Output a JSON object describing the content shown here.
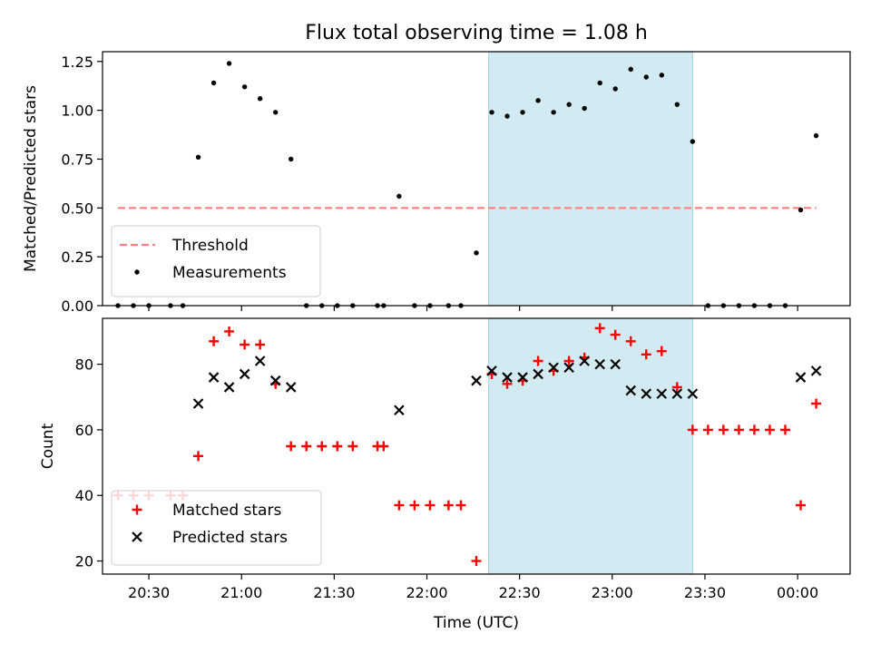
{
  "figure": {
    "title": "Flux total observing time = 1.08 h",
    "xlabel": "Time (UTC)"
  },
  "colors": {
    "highlight": "#add8e6",
    "threshold": "#ff7f7f",
    "measurement": "#000000",
    "matched": "#ff0000",
    "predicted": "#000000"
  },
  "chart_data": [
    {
      "type": "scatter",
      "ylabel": "Matched/Predicted stars",
      "xlim": [
        "20:15",
        "00:17"
      ],
      "ylim": [
        0,
        1.3
      ],
      "yticks": [
        0.0,
        0.25,
        0.5,
        0.75,
        1.0,
        1.25
      ],
      "ytick_labels": [
        "0.00",
        "0.25",
        "0.50",
        "0.75",
        "1.00",
        "1.25"
      ],
      "highlight_span": [
        "22:20",
        "23:26"
      ],
      "threshold": {
        "name": "Threshold",
        "y": 0.5,
        "x": [
          "20:20",
          "00:06"
        ]
      },
      "legend": "lower-left",
      "series": [
        {
          "name": "Measurements",
          "points": [
            [
              "20:20",
              0.0
            ],
            [
              "20:25",
              0.0
            ],
            [
              "20:30",
              0.0
            ],
            [
              "20:37",
              0.0
            ],
            [
              "20:41",
              0.0
            ],
            [
              "20:46",
              0.76
            ],
            [
              "20:51",
              1.14
            ],
            [
              "20:56",
              1.24
            ],
            [
              "21:01",
              1.12
            ],
            [
              "21:06",
              1.06
            ],
            [
              "21:11",
              0.99
            ],
            [
              "21:16",
              0.75
            ],
            [
              "21:21",
              0.0
            ],
            [
              "21:26",
              0.0
            ],
            [
              "21:31",
              0.0
            ],
            [
              "21:36",
              0.0
            ],
            [
              "21:44",
              0.0
            ],
            [
              "21:46",
              0.0
            ],
            [
              "21:51",
              0.56
            ],
            [
              "21:56",
              0.0
            ],
            [
              "22:01",
              0.0
            ],
            [
              "22:07",
              0.0
            ],
            [
              "22:11",
              0.0
            ],
            [
              "22:16",
              0.27
            ],
            [
              "22:21",
              0.99
            ],
            [
              "22:26",
              0.97
            ],
            [
              "22:31",
              0.99
            ],
            [
              "22:36",
              1.05
            ],
            [
              "22:41",
              0.99
            ],
            [
              "22:46",
              1.03
            ],
            [
              "22:51",
              1.01
            ],
            [
              "22:56",
              1.14
            ],
            [
              "23:01",
              1.11
            ],
            [
              "23:06",
              1.21
            ],
            [
              "23:11",
              1.17
            ],
            [
              "23:16",
              1.18
            ],
            [
              "23:21",
              1.03
            ],
            [
              "23:26",
              0.84
            ],
            [
              "23:31",
              0.0
            ],
            [
              "23:36",
              0.0
            ],
            [
              "23:41",
              0.0
            ],
            [
              "23:46",
              0.0
            ],
            [
              "23:51",
              0.0
            ],
            [
              "23:56",
              0.0
            ],
            [
              "00:01",
              0.49
            ],
            [
              "00:06",
              0.87
            ]
          ]
        }
      ]
    },
    {
      "type": "scatter",
      "ylabel": "Count",
      "xlim": [
        "20:15",
        "00:17"
      ],
      "ylim": [
        16,
        94
      ],
      "yticks": [
        20,
        40,
        60,
        80
      ],
      "ytick_labels": [
        "20",
        "40",
        "60",
        "80"
      ],
      "xticks": [
        "20:30",
        "21:00",
        "21:30",
        "22:00",
        "22:30",
        "23:00",
        "23:30",
        "00:00"
      ],
      "highlight_span": [
        "22:20",
        "23:26"
      ],
      "legend": "lower-left",
      "series": [
        {
          "name": "Matched stars",
          "marker": "plus",
          "points": [
            [
              "20:20",
              40
            ],
            [
              "20:25",
              40
            ],
            [
              "20:30",
              40
            ],
            [
              "20:37",
              40
            ],
            [
              "20:41",
              40
            ],
            [
              "20:46",
              52
            ],
            [
              "20:51",
              87
            ],
            [
              "20:56",
              90
            ],
            [
              "21:01",
              86
            ],
            [
              "21:06",
              86
            ],
            [
              "21:11",
              74
            ],
            [
              "21:16",
              55
            ],
            [
              "21:21",
              55
            ],
            [
              "21:26",
              55
            ],
            [
              "21:31",
              55
            ],
            [
              "21:36",
              55
            ],
            [
              "21:44",
              55
            ],
            [
              "21:46",
              55
            ],
            [
              "21:51",
              37
            ],
            [
              "21:56",
              37
            ],
            [
              "22:01",
              37
            ],
            [
              "22:07",
              37
            ],
            [
              "22:11",
              37
            ],
            [
              "22:16",
              20
            ],
            [
              "22:21",
              77
            ],
            [
              "22:26",
              74
            ],
            [
              "22:31",
              75
            ],
            [
              "22:36",
              81
            ],
            [
              "22:41",
              78
            ],
            [
              "22:46",
              81
            ],
            [
              "22:51",
              82
            ],
            [
              "22:56",
              91
            ],
            [
              "23:01",
              89
            ],
            [
              "23:06",
              87
            ],
            [
              "23:11",
              83
            ],
            [
              "23:16",
              84
            ],
            [
              "23:21",
              73
            ],
            [
              "23:26",
              60
            ],
            [
              "23:31",
              60
            ],
            [
              "23:36",
              60
            ],
            [
              "23:41",
              60
            ],
            [
              "23:46",
              60
            ],
            [
              "23:51",
              60
            ],
            [
              "23:56",
              60
            ],
            [
              "00:01",
              37
            ],
            [
              "00:06",
              68
            ]
          ]
        },
        {
          "name": "Predicted stars",
          "marker": "x",
          "points": [
            [
              "20:46",
              68
            ],
            [
              "20:51",
              76
            ],
            [
              "20:56",
              73
            ],
            [
              "21:01",
              77
            ],
            [
              "21:06",
              81
            ],
            [
              "21:11",
              75
            ],
            [
              "21:16",
              73
            ],
            [
              "21:51",
              66
            ],
            [
              "22:16",
              75
            ],
            [
              "22:21",
              78
            ],
            [
              "22:26",
              76
            ],
            [
              "22:31",
              76
            ],
            [
              "22:36",
              77
            ],
            [
              "22:41",
              79
            ],
            [
              "22:46",
              79
            ],
            [
              "22:51",
              81
            ],
            [
              "22:56",
              80
            ],
            [
              "23:01",
              80
            ],
            [
              "23:06",
              72
            ],
            [
              "23:11",
              71
            ],
            [
              "23:16",
              71
            ],
            [
              "23:21",
              71
            ],
            [
              "23:26",
              71
            ],
            [
              "00:01",
              76
            ],
            [
              "00:06",
              78
            ]
          ]
        }
      ]
    }
  ]
}
